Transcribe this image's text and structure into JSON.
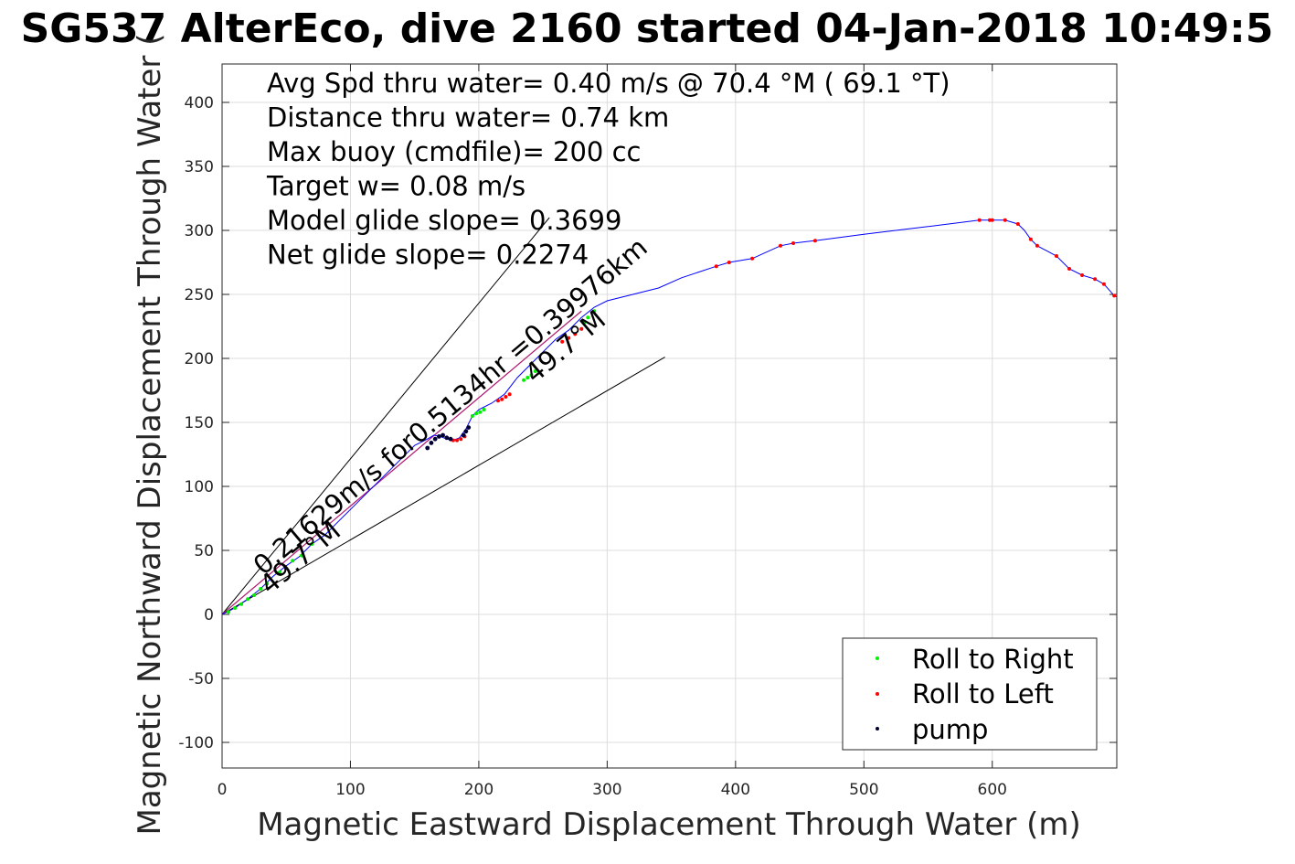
{
  "chart_data": {
    "type": "scatter",
    "title": "SG537 AlterEco, dive 2160 started 04-Jan-2018 10:49:5",
    "xlabel": "Magnetic Eastward Displacement Through Water (m)",
    "ylabel": "Magnetic Northward Displacement Through Water (",
    "xlim": [
      0,
      697
    ],
    "ylim": [
      -120,
      430
    ],
    "xticks": [
      0,
      100,
      200,
      300,
      400,
      500,
      600
    ],
    "yticks": [
      -100,
      -50,
      0,
      50,
      100,
      150,
      200,
      250,
      300,
      350,
      400
    ],
    "grid": true,
    "legend_position": "bottom-right",
    "colors": {
      "track": "#0000ff",
      "glide_line": "#000000",
      "net_line": "#b0156e",
      "roll_right": "#00ee00",
      "roll_left": "#ff0000",
      "pump": "#000033"
    },
    "annotations": [
      "Avg Spd thru water=  0.40 m/s @  70.4 °M ( 69.1 °T)",
      "Distance thru water=  0.74 km",
      "Max buoy (cmdfile)= 200 cc",
      "Target w= 0.08 m/s",
      "Model glide slope= 0.3699",
      "Net glide slope= 0.2274"
    ],
    "rotated_labels": {
      "net_speed": "0.21629m/s for0.5134hr =0.39976km",
      "heading_near": "49.7°M",
      "heading_far": "49.7°M"
    },
    "glide_lines": [
      {
        "x": [
          0,
          255
        ],
        "y": [
          0,
          310
        ]
      },
      {
        "x": [
          0,
          345
        ],
        "y": [
          0,
          201
        ]
      }
    ],
    "net_line": {
      "x": [
        0,
        280
      ],
      "y": [
        0,
        237
      ]
    },
    "series": [
      {
        "name": "track",
        "style": "line",
        "x": [
          0,
          10,
          20,
          30,
          40,
          50,
          60,
          70,
          80,
          90,
          100,
          110,
          120,
          130,
          140,
          150,
          160,
          165,
          170,
          175,
          180,
          185,
          190,
          195,
          200,
          210,
          220,
          230,
          240,
          250,
          260,
          270,
          280,
          290,
          300,
          320,
          340,
          358,
          385,
          395,
          413,
          435,
          445,
          462,
          500,
          550,
          590,
          600,
          610,
          620,
          625,
          630,
          635,
          650,
          660,
          670,
          680,
          687,
          695,
          697
        ],
        "y": [
          0,
          5,
          12,
          20,
          30,
          38,
          45,
          55,
          62,
          72,
          82,
          92,
          102,
          112,
          122,
          132,
          137,
          140,
          139,
          137,
          136,
          138,
          145,
          155,
          160,
          165,
          172,
          185,
          195,
          205,
          215,
          222,
          232,
          240,
          245,
          250,
          255,
          263,
          272,
          275,
          278,
          288,
          290,
          292,
          297,
          303,
          308,
          308,
          308,
          305,
          300,
          293,
          288,
          280,
          270,
          265,
          262,
          258,
          249,
          248
        ]
      },
      {
        "name": "Roll to Right",
        "x": [
          5,
          10,
          15,
          20,
          25,
          30,
          35,
          45,
          55,
          62,
          70,
          195,
          198,
          201,
          204,
          235,
          238,
          241,
          244,
          282,
          285,
          290
        ],
        "y": [
          2,
          5,
          8,
          12,
          15,
          20,
          24,
          33,
          42,
          46,
          55,
          155,
          157,
          158,
          160,
          183,
          185,
          187,
          190,
          228,
          232,
          237
        ]
      },
      {
        "name": "Roll to Left",
        "x": [
          180,
          183,
          186,
          189,
          215,
          218,
          221,
          224,
          265,
          270,
          275,
          280,
          385,
          395,
          413,
          435,
          445,
          462,
          590,
          598,
          600,
          610,
          620,
          630,
          635,
          650,
          660,
          670,
          680,
          687,
          695
        ],
        "y": [
          136,
          136,
          137,
          139,
          167,
          168,
          170,
          172,
          213,
          216,
          219,
          223,
          272,
          275,
          278,
          288,
          290,
          292,
          308,
          308,
          308,
          308,
          305,
          293,
          288,
          280,
          270,
          265,
          262,
          258,
          249
        ]
      },
      {
        "name": "pump",
        "x": [
          160,
          163,
          166,
          169,
          172,
          175,
          178,
          188,
          190,
          192
        ],
        "y": [
          130,
          134,
          137,
          139,
          140,
          138,
          137,
          140,
          143,
          146
        ]
      }
    ]
  }
}
